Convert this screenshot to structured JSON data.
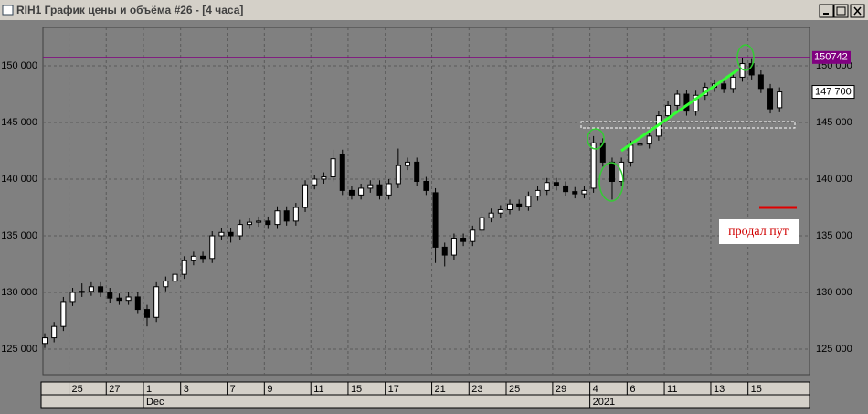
{
  "window": {
    "title": "RIH1 График цены и объёма #26 - [4 часа]"
  },
  "chart_data": {
    "type": "candlestick",
    "categories": [
      null,
      null,
      null,
      "25",
      null,
      null,
      null,
      "27",
      null,
      null,
      null,
      "1",
      null,
      null,
      null,
      "3",
      null,
      null,
      null,
      null,
      "7",
      null,
      null,
      null,
      "9",
      null,
      null,
      null,
      null,
      "11",
      null,
      null,
      null,
      "15",
      null,
      null,
      null,
      "17",
      null,
      null,
      null,
      null,
      "21",
      null,
      null,
      null,
      "23",
      null,
      null,
      null,
      "25",
      null,
      null,
      null,
      null,
      "29",
      null,
      null,
      null,
      "4",
      null,
      null,
      null,
      "6",
      null,
      null,
      null,
      "11",
      null,
      null,
      null,
      null,
      "13",
      null,
      null,
      null,
      "15",
      null,
      null,
      null
    ],
    "months": [
      null,
      null,
      null,
      null,
      null,
      null,
      null,
      null,
      null,
      null,
      null,
      "Dec",
      null,
      null,
      null,
      null,
      null,
      null,
      null,
      null,
      null,
      null,
      null,
      null,
      null,
      null,
      null,
      null,
      null,
      null,
      null,
      null,
      null,
      null,
      null,
      null,
      null,
      null,
      null,
      null,
      null,
      null,
      null,
      null,
      null,
      null,
      null,
      null,
      null,
      null,
      null,
      null,
      null,
      null,
      null,
      null,
      null,
      null,
      null,
      "2021",
      null,
      null,
      null,
      null,
      null,
      null,
      null,
      null,
      null,
      null,
      null,
      null,
      null,
      null,
      null,
      null,
      null,
      null,
      null,
      null
    ],
    "open": [
      125500,
      126000,
      127000,
      129200,
      130000,
      130100,
      130500,
      130000,
      129500,
      129300,
      129600,
      128500,
      127800,
      130500,
      131000,
      131600,
      132800,
      133200,
      133000,
      135000,
      135300,
      135000,
      136000,
      136200,
      136300,
      136000,
      137200,
      136300,
      137500,
      139500,
      140000,
      140200,
      142200,
      139000,
      138600,
      139200,
      139500,
      138600,
      139600,
      141200,
      141500,
      139800,
      138800,
      134000,
      133300,
      134800,
      134500,
      135500,
      136600,
      137000,
      137300,
      137800,
      137600,
      138500,
      139000,
      139700,
      139400,
      138900,
      138700,
      139200,
      143200,
      141500,
      139800,
      141500,
      143000,
      143100,
      143800,
      145600,
      146500,
      147500,
      146000,
      147400,
      148100,
      148400,
      148000,
      149000,
      150200,
      149200,
      148000,
      146300
    ],
    "high": [
      126400,
      127400,
      129600,
      130400,
      130800,
      130900,
      130900,
      130400,
      129900,
      130000,
      130000,
      128900,
      130900,
      131400,
      132000,
      133200,
      133600,
      133600,
      135400,
      135700,
      135700,
      136400,
      136600,
      136700,
      136700,
      137600,
      137600,
      137900,
      139900,
      140400,
      140600,
      142600,
      142600,
      139400,
      139600,
      139900,
      139900,
      140000,
      142700,
      141900,
      141900,
      140200,
      139200,
      134400,
      135200,
      135200,
      135900,
      137000,
      137400,
      137700,
      138200,
      138200,
      138900,
      139400,
      140100,
      140100,
      139800,
      139300,
      139400,
      143800,
      143600,
      141900,
      141900,
      143400,
      143500,
      144200,
      146000,
      146900,
      147900,
      147900,
      147800,
      148500,
      148800,
      148800,
      149400,
      150700,
      150600,
      149600,
      148400,
      148100
    ],
    "low": [
      125100,
      125600,
      126600,
      128800,
      129600,
      129700,
      129600,
      129100,
      128900,
      128900,
      128100,
      127000,
      127400,
      130100,
      130600,
      131200,
      132400,
      132600,
      132600,
      134600,
      134400,
      134600,
      135600,
      135800,
      135600,
      135600,
      135900,
      135900,
      137100,
      139100,
      139600,
      139800,
      138600,
      138200,
      138200,
      138800,
      138200,
      138200,
      139200,
      140800,
      139400,
      138600,
      132600,
      132300,
      132900,
      134100,
      134100,
      135100,
      136200,
      136600,
      136900,
      137200,
      137200,
      138100,
      138600,
      139000,
      138500,
      138300,
      138300,
      138800,
      141100,
      138200,
      139400,
      141100,
      142600,
      142700,
      143400,
      145200,
      146100,
      145600,
      145600,
      147000,
      147700,
      147600,
      147600,
      148600,
      148800,
      147600,
      145800,
      145900
    ],
    "close": [
      126000,
      127000,
      129200,
      130000,
      130100,
      130500,
      130000,
      129500,
      129300,
      129600,
      128500,
      127800,
      130500,
      131000,
      131600,
      132800,
      133200,
      133000,
      135000,
      135300,
      135000,
      136000,
      136200,
      136300,
      136000,
      137200,
      136300,
      137500,
      139500,
      140000,
      140200,
      141800,
      139000,
      138600,
      139200,
      139500,
      138600,
      139600,
      141200,
      141500,
      139800,
      139000,
      134000,
      133300,
      134800,
      134500,
      135500,
      136600,
      137000,
      137300,
      137800,
      137600,
      138500,
      139000,
      139700,
      139400,
      138900,
      138700,
      139000,
      143200,
      141500,
      139800,
      141500,
      143000,
      143100,
      143800,
      145600,
      146500,
      147500,
      146000,
      147400,
      148100,
      148400,
      148000,
      149000,
      150200,
      149200,
      148000,
      146200,
      147700
    ],
    "ylim": [
      122740,
      153390
    ],
    "yticks": [
      {
        "value": 125000,
        "label": "125 000"
      },
      {
        "value": 130000,
        "label": "130 000"
      },
      {
        "value": 135000,
        "label": "135 000"
      },
      {
        "value": 140000,
        "label": "140 000"
      },
      {
        "value": 145000,
        "label": "145 000"
      },
      {
        "value": 150000,
        "label": "150 000"
      }
    ],
    "grid": true,
    "level": 150742,
    "level_color": "#800080",
    "last_price": {
      "value": 147700,
      "label": "147 700"
    },
    "annotation": "продал пут"
  }
}
